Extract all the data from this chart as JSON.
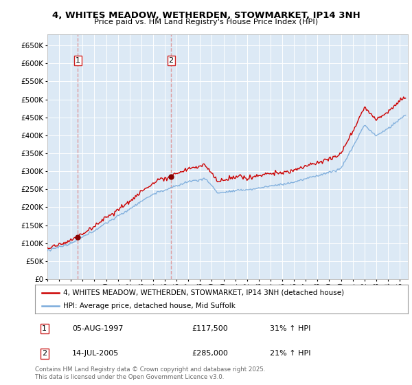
{
  "title_line1": "4, WHITES MEADOW, WETHERDEN, STOWMARKET, IP14 3NH",
  "title_line2": "Price paid vs. HM Land Registry's House Price Index (HPI)",
  "ylim": [
    0,
    680000
  ],
  "yticks": [
    0,
    50000,
    100000,
    150000,
    200000,
    250000,
    300000,
    350000,
    400000,
    450000,
    500000,
    550000,
    600000,
    650000
  ],
  "xlim_start": 1995.0,
  "xlim_end": 2025.7,
  "bg_color": "#dce9f5",
  "grid_color": "#ffffff",
  "red_line_color": "#cc0000",
  "blue_line_color": "#7aabdb",
  "sale1_x": 1997.58,
  "sale1_y": 117500,
  "sale2_x": 2005.53,
  "sale2_y": 285000,
  "vline_color": "#dd8888",
  "marker_color": "#880000",
  "legend_label_red": "4, WHITES MEADOW, WETHERDEN, STOWMARKET, IP14 3NH (detached house)",
  "legend_label_blue": "HPI: Average price, detached house, Mid Suffolk",
  "annotation1_date": "05-AUG-1997",
  "annotation1_price": "£117,500",
  "annotation1_hpi": "31% ↑ HPI",
  "annotation2_date": "14-JUL-2005",
  "annotation2_price": "£285,000",
  "annotation2_hpi": "21% ↑ HPI",
  "footer": "Contains HM Land Registry data © Crown copyright and database right 2025.\nThis data is licensed under the Open Government Licence v3.0."
}
